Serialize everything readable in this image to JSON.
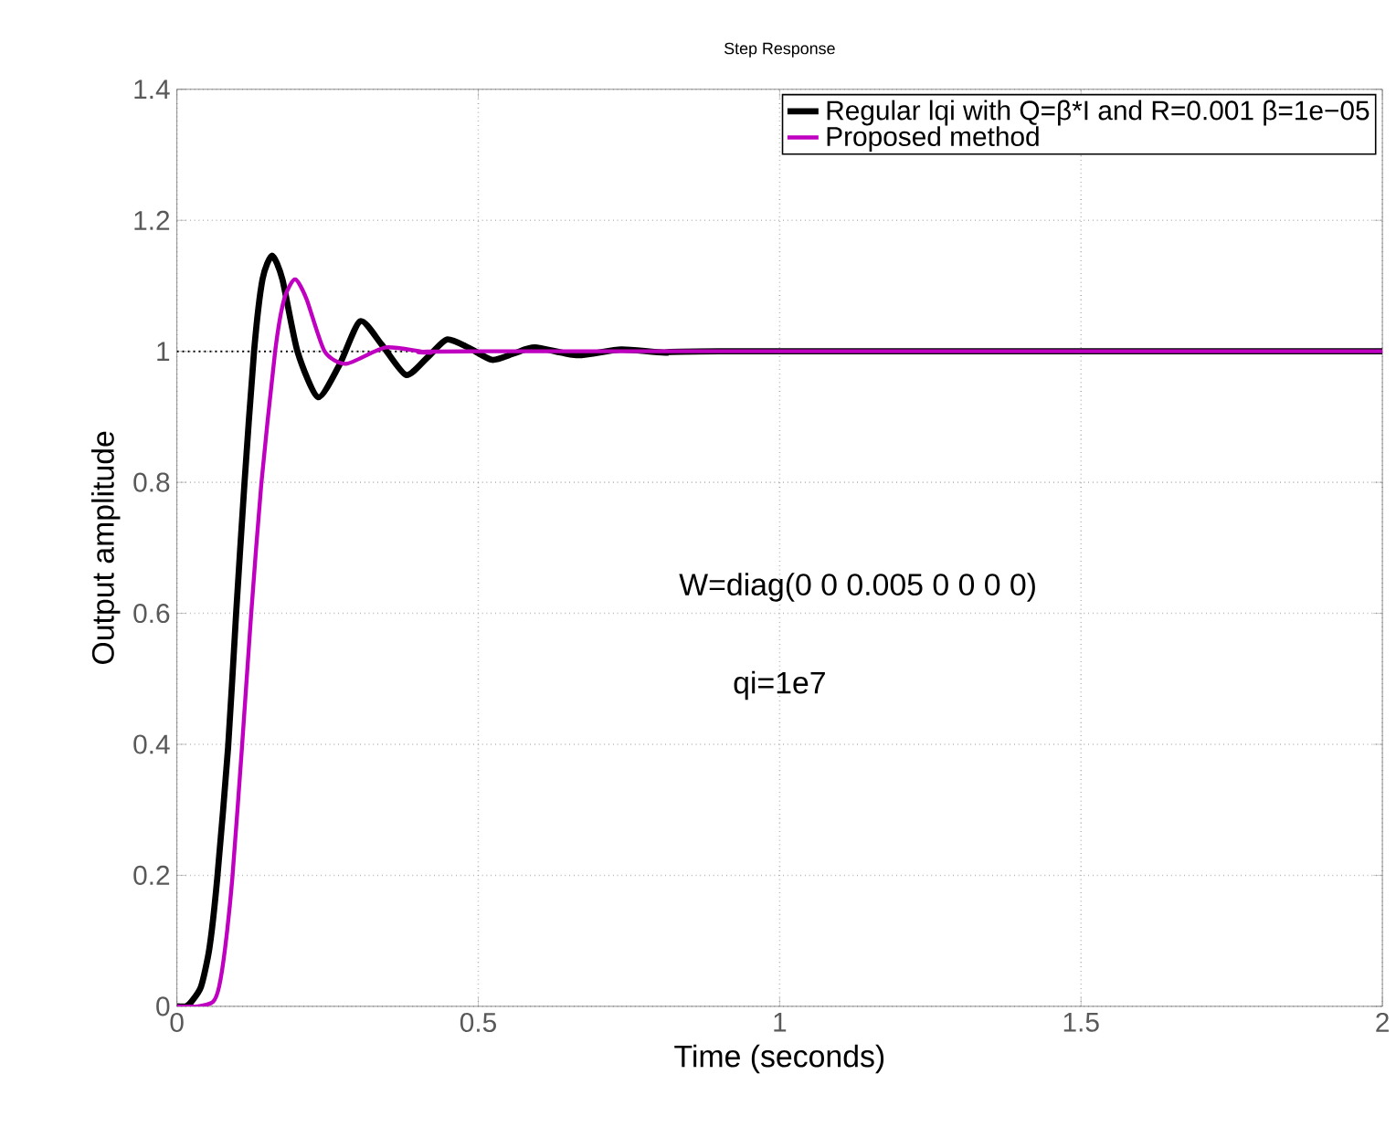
{
  "chart_data": {
    "type": "line",
    "title": "Step Response",
    "xlabel": "Time (seconds)",
    "ylabel": "Output amplitude",
    "xlim": [
      0,
      2
    ],
    "ylim": [
      0,
      1.4
    ],
    "xticks": [
      0,
      0.5,
      1,
      1.5,
      2
    ],
    "yticks": [
      0,
      0.2,
      0.4,
      0.6,
      0.8,
      1,
      1.2,
      1.4
    ],
    "grid": true,
    "legend": "top right",
    "marker": "none",
    "line_style": "solid",
    "ref_lines": [
      {
        "axis": "y",
        "value": 1,
        "color": "#000000",
        "line_style": "dotted"
      }
    ],
    "annotations": [
      "W=diag(0    0    0.005    0    0    0    0)",
      "qi=1e7"
    ],
    "series": [
      {
        "name": "Regular lqi with Q=β*I and R=0.001   β=1e−05",
        "color": "#000000",
        "x": [
          0,
          0.015,
          0.024,
          0.04,
          0.054,
          0.067,
          0.085,
          0.098,
          0.112,
          0.128,
          0.142,
          0.158,
          0.175,
          0.2,
          0.234,
          0.27,
          0.304,
          0.34,
          0.38,
          0.415,
          0.448,
          0.485,
          0.523,
          0.56,
          0.594,
          0.665,
          0.737,
          0.81,
          0.9,
          2
        ],
        "values": [
          0,
          0,
          0.007,
          0.03,
          0.089,
          0.196,
          0.396,
          0.596,
          0.797,
          1.0,
          1.11,
          1.146,
          1.11,
          1.0,
          0.93,
          0.98,
          1.046,
          1.01,
          0.964,
          0.99,
          1.018,
          1.005,
          0.987,
          0.997,
          1.006,
          0.994,
          1.003,
          0.998,
          1.0,
          1.0
        ]
      },
      {
        "name": "Proposed method",
        "color": "#c000c0",
        "x": [
          0,
          0.035,
          0.06,
          0.07,
          0.08,
          0.092,
          0.108,
          0.123,
          0.14,
          0.163,
          0.178,
          0.196,
          0.215,
          0.245,
          0.281,
          0.347,
          0.42,
          0.5,
          2
        ],
        "values": [
          0,
          0,
          0.007,
          0.03,
          0.089,
          0.196,
          0.396,
          0.596,
          0.797,
          1.0,
          1.08,
          1.11,
          1.08,
          1.0,
          0.981,
          1.006,
          0.998,
          1.0,
          1.0
        ]
      }
    ]
  }
}
